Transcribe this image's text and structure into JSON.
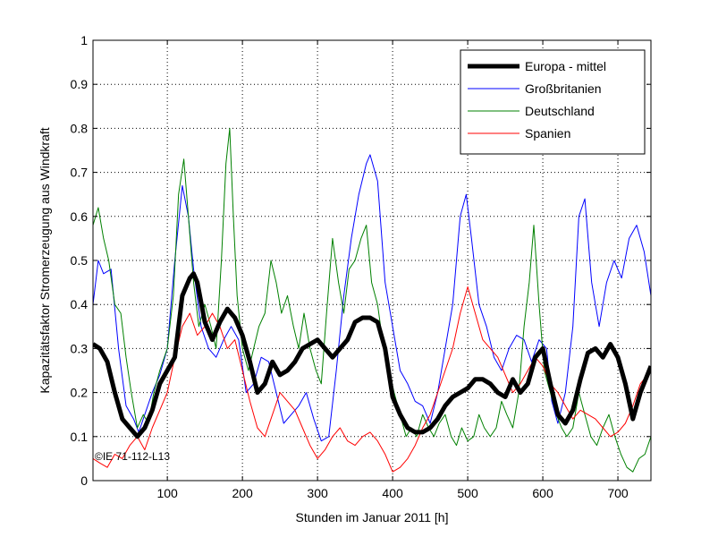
{
  "chart_data": {
    "type": "line",
    "title": "",
    "xlabel": "Stunden im Januar 2011 [h]",
    "ylabel": "Kapazitätsfaktor Stromerzeugung aus Windkraft",
    "xlim": [
      1,
      744
    ],
    "ylim": [
      0,
      1
    ],
    "xticks": [
      100,
      200,
      300,
      400,
      500,
      600,
      700
    ],
    "xtick_labels": [
      "100",
      "200",
      "300",
      "400",
      "500",
      "600",
      "700"
    ],
    "yticks": [
      0,
      0.1,
      0.2,
      0.3,
      0.4,
      0.5,
      0.6,
      0.7,
      0.8,
      0.9,
      1
    ],
    "ytick_labels": [
      "0",
      "0.1",
      "0.2",
      "0.3",
      "0.4",
      "0.5",
      "0.6",
      "0.7",
      "0.8",
      "0.9",
      "1"
    ],
    "grid": true,
    "legend_position": "top-right",
    "annotation": "©IE 71-112-L13",
    "series": [
      {
        "name": "Europa - mittel",
        "color": "#000000",
        "x": [
          1,
          10,
          20,
          30,
          40,
          50,
          60,
          70,
          80,
          90,
          100,
          110,
          120,
          130,
          135,
          140,
          150,
          160,
          170,
          180,
          190,
          200,
          210,
          220,
          230,
          240,
          250,
          260,
          270,
          280,
          290,
          300,
          310,
          320,
          330,
          340,
          350,
          360,
          370,
          380,
          390,
          400,
          410,
          420,
          430,
          440,
          450,
          460,
          470,
          480,
          490,
          500,
          510,
          520,
          530,
          540,
          550,
          560,
          570,
          580,
          590,
          600,
          610,
          620,
          630,
          640,
          650,
          660,
          670,
          680,
          690,
          700,
          710,
          720,
          730,
          744
        ],
        "y": [
          0.31,
          0.3,
          0.27,
          0.2,
          0.14,
          0.12,
          0.1,
          0.12,
          0.16,
          0.22,
          0.25,
          0.28,
          0.42,
          0.46,
          0.47,
          0.45,
          0.36,
          0.32,
          0.36,
          0.39,
          0.37,
          0.33,
          0.27,
          0.2,
          0.22,
          0.27,
          0.24,
          0.25,
          0.27,
          0.3,
          0.31,
          0.32,
          0.3,
          0.28,
          0.3,
          0.32,
          0.36,
          0.37,
          0.37,
          0.36,
          0.3,
          0.19,
          0.15,
          0.12,
          0.11,
          0.11,
          0.12,
          0.14,
          0.17,
          0.19,
          0.2,
          0.21,
          0.23,
          0.23,
          0.22,
          0.2,
          0.19,
          0.23,
          0.2,
          0.22,
          0.28,
          0.3,
          0.22,
          0.15,
          0.13,
          0.16,
          0.23,
          0.29,
          0.3,
          0.28,
          0.31,
          0.28,
          0.22,
          0.14,
          0.2,
          0.26
        ],
        "line_width": 5
      },
      {
        "name": "Großbritanien",
        "color": "#0000ff",
        "x": [
          1,
          8,
          15,
          25,
          35,
          45,
          55,
          62,
          70,
          80,
          90,
          100,
          110,
          120,
          128,
          135,
          145,
          155,
          165,
          175,
          185,
          195,
          205,
          215,
          225,
          235,
          245,
          255,
          265,
          275,
          285,
          295,
          305,
          315,
          325,
          335,
          345,
          355,
          365,
          370,
          380,
          390,
          400,
          410,
          420,
          430,
          440,
          450,
          460,
          470,
          480,
          490,
          498,
          505,
          515,
          525,
          535,
          545,
          555,
          565,
          575,
          585,
          595,
          605,
          612,
          620,
          630,
          640,
          648,
          656,
          665,
          675,
          685,
          695,
          705,
          715,
          725,
          735,
          744
        ],
        "y": [
          0.4,
          0.5,
          0.47,
          0.48,
          0.3,
          0.17,
          0.14,
          0.11,
          0.15,
          0.2,
          0.24,
          0.3,
          0.5,
          0.67,
          0.6,
          0.48,
          0.35,
          0.3,
          0.28,
          0.32,
          0.35,
          0.32,
          0.2,
          0.22,
          0.28,
          0.27,
          0.2,
          0.13,
          0.15,
          0.17,
          0.2,
          0.14,
          0.09,
          0.1,
          0.25,
          0.42,
          0.55,
          0.65,
          0.72,
          0.74,
          0.68,
          0.45,
          0.35,
          0.25,
          0.22,
          0.18,
          0.17,
          0.13,
          0.2,
          0.3,
          0.4,
          0.6,
          0.65,
          0.55,
          0.4,
          0.35,
          0.28,
          0.25,
          0.3,
          0.33,
          0.32,
          0.27,
          0.32,
          0.3,
          0.18,
          0.13,
          0.2,
          0.35,
          0.6,
          0.64,
          0.45,
          0.35,
          0.45,
          0.5,
          0.46,
          0.55,
          0.58,
          0.52,
          0.42
        ],
        "line_width": 1
      },
      {
        "name": "Deutschland",
        "color": "#008000",
        "x": [
          1,
          8,
          15,
          22,
          30,
          38,
          45,
          52,
          60,
          68,
          75,
          82,
          90,
          100,
          108,
          115,
          122,
          128,
          135,
          142,
          150,
          158,
          165,
          172,
          178,
          183,
          188,
          193,
          200,
          208,
          215,
          222,
          230,
          238,
          245,
          252,
          260,
          268,
          275,
          282,
          290,
          298,
          305,
          312,
          320,
          328,
          335,
          342,
          350,
          358,
          365,
          372,
          380,
          388,
          395,
          402,
          410,
          418,
          425,
          432,
          440,
          448,
          455,
          462,
          470,
          478,
          485,
          492,
          500,
          508,
          515,
          522,
          530,
          538,
          545,
          552,
          560,
          568,
          575,
          582,
          588,
          595,
          602,
          610,
          618,
          625,
          632,
          640,
          648,
          656,
          664,
          672,
          680,
          688,
          696,
          704,
          712,
          720,
          728,
          736,
          744
        ],
        "y": [
          0.58,
          0.62,
          0.55,
          0.5,
          0.4,
          0.38,
          0.28,
          0.2,
          0.12,
          0.15,
          0.13,
          0.2,
          0.25,
          0.3,
          0.42,
          0.65,
          0.73,
          0.6,
          0.45,
          0.35,
          0.4,
          0.35,
          0.3,
          0.5,
          0.72,
          0.8,
          0.6,
          0.42,
          0.3,
          0.25,
          0.3,
          0.35,
          0.38,
          0.5,
          0.45,
          0.38,
          0.42,
          0.35,
          0.3,
          0.38,
          0.3,
          0.25,
          0.22,
          0.38,
          0.55,
          0.45,
          0.38,
          0.48,
          0.5,
          0.55,
          0.58,
          0.45,
          0.4,
          0.3,
          0.25,
          0.2,
          0.15,
          0.1,
          0.12,
          0.1,
          0.15,
          0.12,
          0.1,
          0.13,
          0.15,
          0.1,
          0.08,
          0.12,
          0.09,
          0.1,
          0.15,
          0.12,
          0.1,
          0.12,
          0.18,
          0.15,
          0.12,
          0.2,
          0.35,
          0.45,
          0.58,
          0.4,
          0.25,
          0.2,
          0.15,
          0.12,
          0.1,
          0.12,
          0.2,
          0.15,
          0.1,
          0.08,
          0.12,
          0.15,
          0.1,
          0.06,
          0.03,
          0.02,
          0.05,
          0.06,
          0.1
        ],
        "line_width": 1
      },
      {
        "name": "Spanien",
        "color": "#ff0000",
        "x": [
          1,
          10,
          20,
          30,
          40,
          50,
          60,
          70,
          80,
          90,
          100,
          110,
          120,
          130,
          140,
          150,
          160,
          170,
          180,
          190,
          200,
          210,
          220,
          230,
          240,
          250,
          260,
          270,
          280,
          290,
          300,
          310,
          320,
          330,
          340,
          350,
          360,
          370,
          380,
          390,
          400,
          410,
          420,
          430,
          440,
          450,
          460,
          470,
          480,
          490,
          500,
          510,
          520,
          530,
          540,
          550,
          560,
          570,
          580,
          590,
          600,
          610,
          620,
          630,
          640,
          650,
          660,
          670,
          680,
          690,
          700,
          710,
          720,
          730,
          744
        ],
        "y": [
          0.05,
          0.04,
          0.03,
          0.06,
          0.05,
          0.08,
          0.1,
          0.07,
          0.12,
          0.16,
          0.2,
          0.28,
          0.35,
          0.38,
          0.33,
          0.35,
          0.38,
          0.35,
          0.3,
          0.32,
          0.25,
          0.18,
          0.12,
          0.1,
          0.15,
          0.2,
          0.18,
          0.16,
          0.12,
          0.08,
          0.05,
          0.07,
          0.1,
          0.12,
          0.09,
          0.08,
          0.1,
          0.11,
          0.09,
          0.06,
          0.02,
          0.03,
          0.05,
          0.08,
          0.12,
          0.15,
          0.2,
          0.25,
          0.3,
          0.38,
          0.44,
          0.38,
          0.32,
          0.3,
          0.28,
          0.24,
          0.2,
          0.22,
          0.25,
          0.28,
          0.26,
          0.22,
          0.2,
          0.17,
          0.14,
          0.16,
          0.15,
          0.14,
          0.12,
          0.1,
          0.11,
          0.13,
          0.17,
          0.22,
          0.25
        ],
        "line_width": 1
      }
    ]
  }
}
